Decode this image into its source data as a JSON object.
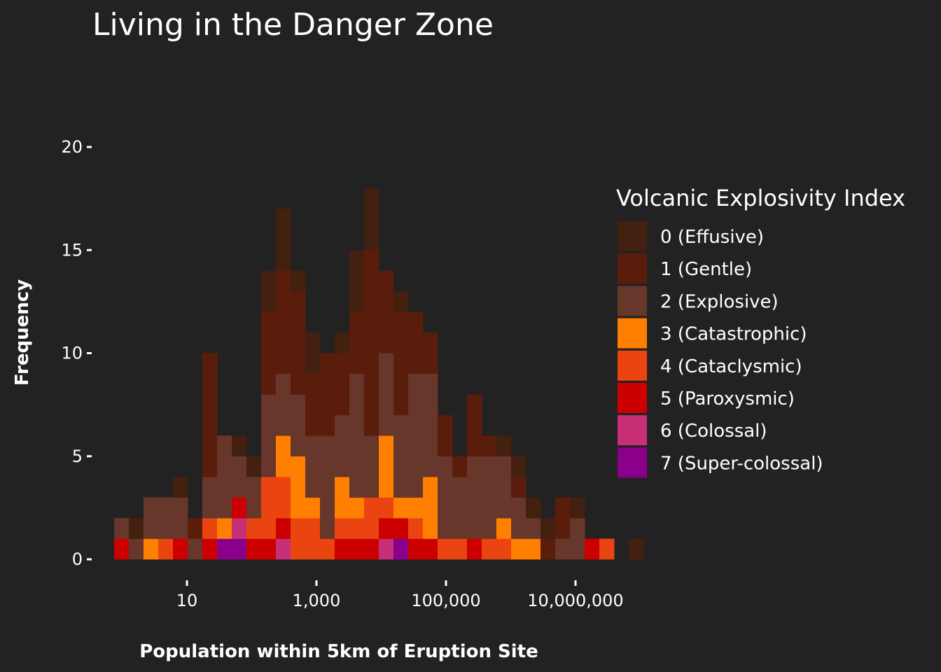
{
  "chart_data": {
    "type": "histogram",
    "title": "Living in the Danger Zone",
    "xlabel": "Population within 5km of Eruption Site",
    "ylabel": "Frequency",
    "x_scale": "log10",
    "x_ticks": [
      {
        "value": 10,
        "label": "10"
      },
      {
        "value": 1000,
        "label": "1,000"
      },
      {
        "value": 100000,
        "label": "100,000"
      },
      {
        "value": 10000000,
        "label": "10,000,000"
      }
    ],
    "y_ticks": [
      0,
      5,
      10,
      15,
      20
    ],
    "ylim": [
      0,
      22
    ],
    "legend": {
      "title": "Volcanic Explosivity Index",
      "position": "right",
      "entries": [
        {
          "label": "0 (Effusive)",
          "color": "#43200f"
        },
        {
          "label": "1 (Gentle)",
          "color": "#5a1d0c"
        },
        {
          "label": "2 (Explosive)",
          "color": "#66372a"
        },
        {
          "label": "3 (Catastrophic)",
          "color": "#ff8000"
        },
        {
          "label": "4 (Cataclysmic)",
          "color": "#ea4510"
        },
        {
          "label": "5 (Paroxysmic)",
          "color": "#cc0001"
        },
        {
          "label": "6 (Colossal)",
          "color": "#c73077"
        },
        {
          "label": "7 (Super-colossal)",
          "color": "#8b008b"
        }
      ]
    },
    "stacked_counts_per_bin": [
      [
        0,
        0,
        1,
        0,
        0,
        1,
        0,
        0
      ],
      [
        1,
        0,
        1,
        0,
        0,
        0,
        0,
        0
      ],
      [
        0,
        0,
        2,
        1,
        0,
        0,
        0,
        0
      ],
      [
        0,
        0,
        2,
        0,
        1,
        0,
        0,
        0
      ],
      [
        1,
        0,
        2,
        0,
        0,
        1,
        0,
        0
      ],
      [
        0,
        1,
        1,
        0,
        0,
        0,
        0,
        0
      ],
      [
        0,
        6,
        2,
        0,
        1,
        1,
        0,
        0
      ],
      [
        0,
        0,
        4,
        1,
        0,
        0,
        0,
        1
      ],
      [
        1,
        0,
        2,
        0,
        0,
        1,
        1,
        1
      ],
      [
        1,
        0,
        2,
        0,
        1,
        1,
        0,
        0
      ],
      [
        2,
        4,
        4,
        0,
        3,
        1,
        0,
        0
      ],
      [
        3,
        5,
        3,
        2,
        2,
        1,
        1,
        0
      ],
      [
        1,
        5,
        3,
        3,
        2,
        0,
        0,
        0
      ],
      [
        2,
        3,
        3,
        1,
        2,
        0,
        0,
        0
      ],
      [
        0,
        4,
        5,
        0,
        1,
        0,
        0,
        0
      ],
      [
        1,
        3,
        3,
        2,
        1,
        1,
        0,
        0
      ],
      [
        3,
        3,
        6,
        1,
        1,
        1,
        0,
        0
      ],
      [
        3,
        9,
        3,
        0,
        2,
        1,
        0,
        0
      ],
      [
        0,
        4,
        4,
        3,
        1,
        1,
        1,
        0
      ],
      [
        1,
        5,
        4,
        1,
        0,
        1,
        0,
        1
      ],
      [
        0,
        3,
        6,
        1,
        1,
        1,
        0,
        0
      ],
      [
        0,
        2,
        5,
        3,
        0,
        1,
        0,
        0
      ],
      [
        0,
        2,
        4,
        0,
        1,
        0,
        0,
        0
      ],
      [
        0,
        1,
        3,
        0,
        1,
        0,
        0,
        0
      ],
      [
        0,
        3,
        4,
        0,
        0,
        1,
        0,
        0
      ],
      [
        0,
        1,
        4,
        0,
        1,
        0,
        0,
        0
      ],
      [
        1,
        0,
        3,
        1,
        1,
        0,
        0,
        0
      ],
      [
        1,
        1,
        2,
        1,
        0,
        0,
        0,
        0
      ],
      [
        1,
        0,
        1,
        1,
        0,
        0,
        0,
        0
      ],
      [
        1,
        1,
        0,
        0,
        0,
        0,
        0,
        0
      ],
      [
        0,
        2,
        1,
        0,
        0,
        0,
        0,
        0
      ],
      [
        1,
        0,
        2,
        0,
        0,
        0,
        0,
        0
      ],
      [
        0,
        0,
        0,
        0,
        0,
        1,
        0,
        0
      ],
      [
        0,
        0,
        0,
        0,
        1,
        0,
        0,
        0
      ],
      [
        0,
        0,
        0,
        0,
        0,
        0,
        0,
        0
      ],
      [
        1,
        0,
        0,
        0,
        0,
        0,
        0,
        0
      ]
    ]
  }
}
